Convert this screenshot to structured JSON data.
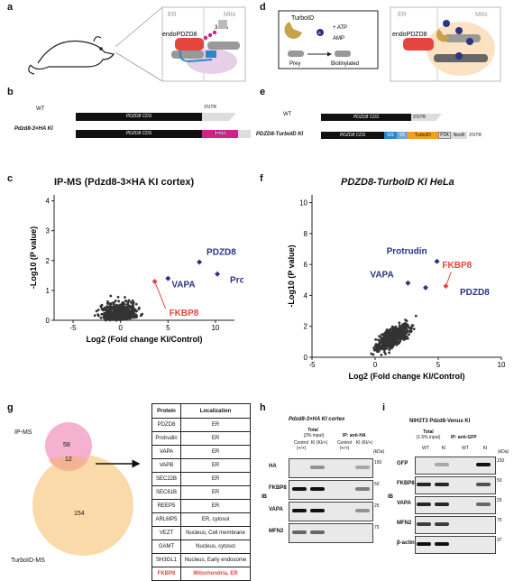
{
  "panels": {
    "a": "a",
    "b": "b",
    "c": "c",
    "d": "d",
    "e": "e",
    "f": "f",
    "g": "g",
    "h": "h",
    "i": "i"
  },
  "panel_a": {
    "er": "ER",
    "mito": "Mito",
    "tag": "3×HA",
    "protein": "endoPDZD8"
  },
  "panel_d": {
    "er": "ER",
    "mito": "Mito",
    "enzyme": "TurboID",
    "atp": "+ ATP",
    "amp": "AMP",
    "prey": "Prey",
    "biotinylated": "Biotinylated",
    "protein": "endoPDZD8",
    "biotin": "B"
  },
  "panel_b": {
    "wt": "WT",
    "ki": "Pdzd8-3×HA KI",
    "cds": "PDZD8 CDS",
    "utr": "3'UTR",
    "tag": "3×HA"
  },
  "panel_e": {
    "wt": "WT",
    "ki": "PDZD8-TurboID KI",
    "cds": "PDZD8 CDS",
    "utr": "3'UTR",
    "gs": "GS",
    "v5": "V5",
    "turbo": "TurboID",
    "p2a": "P2A",
    "neo": "NeoR"
  },
  "panel_c": {
    "title": "IP-MS (Pdzd8-3×HA KI cortex)",
    "xlabel": "Log2 (Fold change KI/Control)",
    "ylabel": "-Log10 (P value)"
  },
  "panel_f": {
    "title": "PDZD8-TurboID KI HeLa",
    "xlabel": "Log2 (Fold change KI/Control)",
    "ylabel": "-Log10 (P value)"
  },
  "chart_data": [
    {
      "type": "scatter",
      "title": "IP-MS (Pdzd8-3×HA KI cortex)",
      "xlabel": "Log2 (Fold change KI/Control)",
      "ylabel": "-Log10 (P value)",
      "xlim": [
        -7,
        12
      ],
      "ylim": [
        0,
        4.2
      ],
      "xticks": [
        -5,
        0,
        5,
        10
      ],
      "yticks": [
        0,
        1,
        2,
        3,
        4
      ],
      "highlight": [
        {
          "name": "PDZD8",
          "x": 8.3,
          "y": 1.95
        },
        {
          "name": "Protrudin",
          "x": 10.2,
          "y": 1.55
        },
        {
          "name": "VAPA",
          "x": 5.0,
          "y": 1.4
        },
        {
          "name": "FKBP8",
          "x": 3.6,
          "y": 1.3
        }
      ]
    },
    {
      "type": "scatter",
      "title": "PDZD8-TurboID KI HeLa",
      "xlabel": "Log2 (Fold change KI/Control)",
      "ylabel": "-Log10 (P value)",
      "xlim": [
        -5,
        10
      ],
      "ylim": [
        0,
        10.5
      ],
      "xticks": [
        -5,
        0,
        5,
        10
      ],
      "yticks": [
        0,
        2,
        4,
        6,
        8,
        10
      ],
      "highlight": [
        {
          "name": "Protrudin",
          "x": 4.9,
          "y": 6.2
        },
        {
          "name": "FKBP8",
          "x": 5.6,
          "y": 4.6
        },
        {
          "name": "VAPA",
          "x": 2.6,
          "y": 4.8
        },
        {
          "name": "PDZD8",
          "x": 4.0,
          "y": 4.5
        }
      ]
    }
  ],
  "panel_g": {
    "ipms": "IP-MS",
    "turbo": "TurboID-MS",
    "only_ip": "58",
    "overlap": "12",
    "only_turbo": "154",
    "headers": [
      "Protein",
      "Localization"
    ],
    "rows": [
      [
        "PDZD8",
        "ER"
      ],
      [
        "Protrudin",
        "ER"
      ],
      [
        "VAPA",
        "ER"
      ],
      [
        "VAPB",
        "ER"
      ],
      [
        "SEC22B",
        "ER"
      ],
      [
        "SEC61B",
        "ER"
      ],
      [
        "REEP5",
        "ER"
      ],
      [
        "ARL6IP5",
        "ER, cytosol"
      ],
      [
        "VEZT",
        "Nucleus, Cell membrane"
      ],
      [
        "GAMT",
        "Nucleus, cytosol"
      ],
      [
        "SH3GL1",
        "Nucleus, Early endosome"
      ],
      [
        "FKBP8",
        "Mitochondria, ER"
      ]
    ]
  },
  "panel_h": {
    "title": "Pdzd8-3×HA KI cortex",
    "total": "Total",
    "input": "(2% input)",
    "ip": "IP: anti-HA",
    "lanes": [
      "Control (+/+)",
      "KI (KI/+)",
      "Control (+/+)",
      "KI (KI/+)"
    ],
    "side": "IB",
    "kda": "(kDa)",
    "blots": [
      {
        "name": "HA",
        "mw": "150"
      },
      {
        "name": "FKBP8",
        "mw": "50"
      },
      {
        "name": "VAPA",
        "mw": "25"
      },
      {
        "name": "MFN2",
        "mw": "75"
      }
    ]
  },
  "panel_i": {
    "title": "NIH3T3 Pdzd8-Venus KI",
    "total": "Total",
    "input": "(1.5% input)",
    "ip": "IP: anti-GFP",
    "lanes": [
      "WT",
      "KI",
      "WT",
      "KI"
    ],
    "side": "IB",
    "kda": "(kDa)",
    "blots": [
      {
        "name": "GFP",
        "mw": "150"
      },
      {
        "name": "FKBP8",
        "mw": "50"
      },
      {
        "name": "VAPA",
        "mw": "25"
      },
      {
        "name": "MFN2",
        "mw": "75"
      },
      {
        "name": "β-actin",
        "mw": "37"
      }
    ]
  },
  "colors": {
    "red": "#e4463f",
    "navy": "#2c3383",
    "pink": "#e7559f",
    "venn_pink": "#f4aacb",
    "venn_orange": "#fbd6a0",
    "magenta": "#d4208c",
    "blue": "#2d86c5",
    "turbo": "#f0a020"
  }
}
